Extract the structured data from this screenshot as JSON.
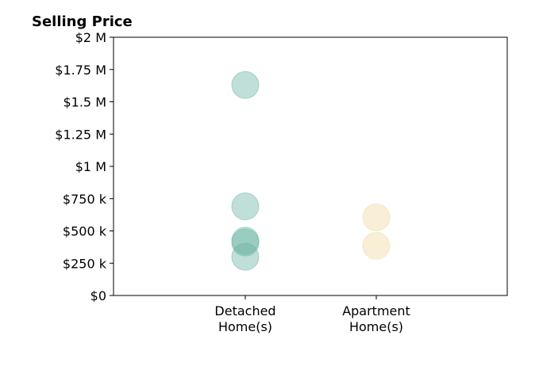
{
  "chart_data": {
    "type": "scatter",
    "title": "Selling Price",
    "xlabel": "",
    "ylabel": "",
    "categories": [
      "Detached\nHome(s)",
      "Apartment\nHome(s)"
    ],
    "ylim": [
      0,
      2000000
    ],
    "yticks": [
      {
        "value": 0,
        "label": "$0"
      },
      {
        "value": 250000,
        "label": "$250 k"
      },
      {
        "value": 500000,
        "label": "$500 k"
      },
      {
        "value": 750000,
        "label": "$750 k"
      },
      {
        "value": 1000000,
        "label": "$1 M"
      },
      {
        "value": 1250000,
        "label": "$1.25 M"
      },
      {
        "value": 1500000,
        "label": "$1.5 M"
      },
      {
        "value": 1750000,
        "label": "$1.75 M"
      },
      {
        "value": 2000000,
        "label": "$2 M"
      }
    ],
    "grid": false,
    "series": [
      {
        "category": "Detached\nHome(s)",
        "color": "#69b3a2",
        "values": [
          1630000,
          690000,
          425000,
          410000,
          300000
        ]
      },
      {
        "category": "Apartment\nHome(s)",
        "color": "#f0d9a0",
        "values": [
          605000,
          385000
        ]
      }
    ]
  }
}
